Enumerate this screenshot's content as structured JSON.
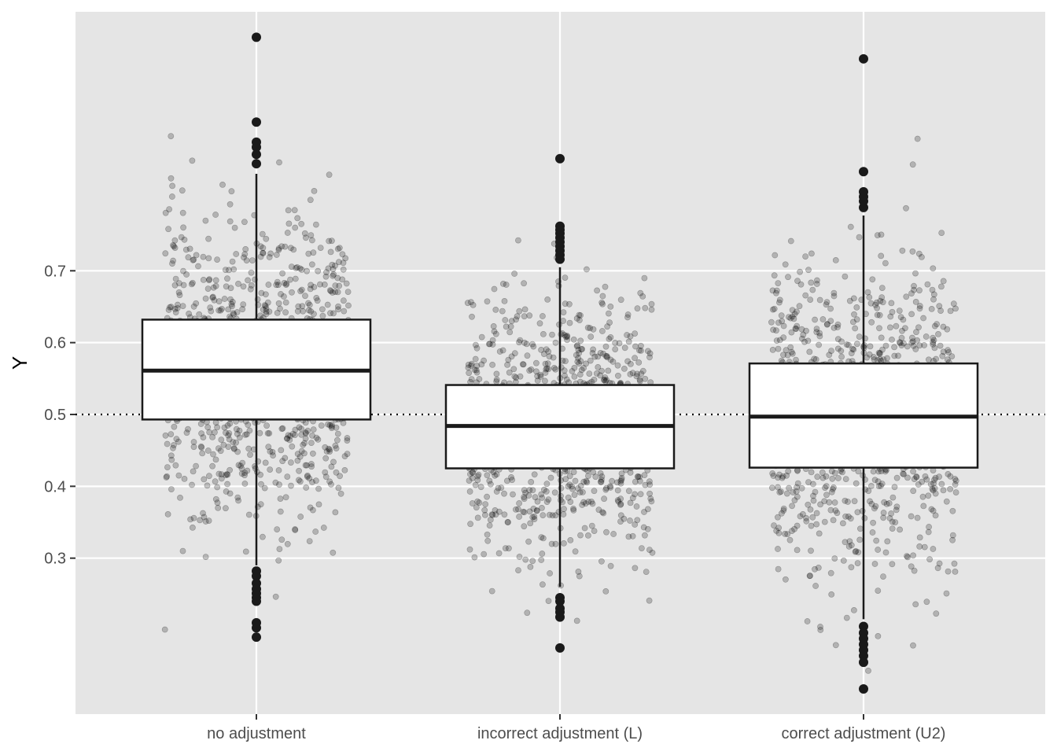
{
  "chart_data": {
    "type": "boxplot",
    "title": "",
    "xlabel": "",
    "ylabel": "Y",
    "ylim": [
      0.09,
      1.07
    ],
    "yticks": [
      0.3,
      0.4,
      0.5,
      0.6,
      0.7
    ],
    "ytick_labels": [
      "0.3",
      "0.4",
      "0.5",
      "0.6",
      "0.7"
    ],
    "reference_line": {
      "y": 0.5,
      "style": "dotted"
    },
    "grid": true,
    "background": "#e5e5e5",
    "point_color": "#000000",
    "jitter_points_per_group": 1000,
    "categories": [
      "no adjustment",
      "incorrect adjustment (L)",
      "correct adjustment (U2)"
    ],
    "boxes": [
      {
        "category": "no adjustment",
        "q1": 0.493,
        "median": 0.561,
        "q3": 0.632,
        "whisker_low": 0.29,
        "whisker_high": 0.835,
        "outliers": [
          1.025,
          0.907,
          0.879,
          0.872,
          0.862,
          0.849,
          0.282,
          0.275,
          0.265,
          0.257,
          0.251,
          0.245,
          0.24,
          0.21,
          0.203,
          0.19
        ],
        "jitter_min": 0.2,
        "jitter_max": 1.03
      },
      {
        "category": "incorrect adjustment (L)",
        "q1": 0.425,
        "median": 0.484,
        "q3": 0.541,
        "whisker_low": 0.26,
        "whisker_high": 0.705,
        "outliers": [
          0.856,
          0.762,
          0.757,
          0.752,
          0.746,
          0.74,
          0.734,
          0.728,
          0.722,
          0.716,
          0.245,
          0.24,
          0.23,
          0.225,
          0.218,
          0.175
        ],
        "jitter_min": 0.18,
        "jitter_max": 0.86
      },
      {
        "category": "correct adjustment (U2)",
        "q1": 0.426,
        "median": 0.497,
        "q3": 0.571,
        "whisker_low": 0.215,
        "whisker_high": 0.777,
        "outliers": [
          0.995,
          0.838,
          0.81,
          0.803,
          0.797,
          0.788,
          0.205,
          0.196,
          0.188,
          0.18,
          0.172,
          0.164,
          0.155,
          0.118
        ],
        "jitter_min": 0.118,
        "jitter_max": 0.995
      }
    ]
  }
}
